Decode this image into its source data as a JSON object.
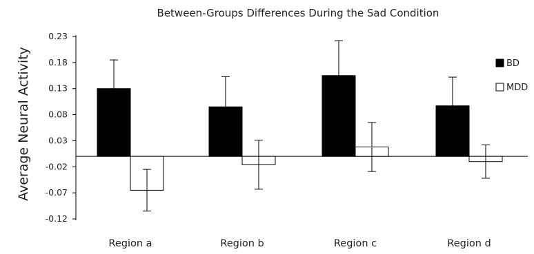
{
  "chart_data": {
    "type": "bar",
    "title": "Between-Groups Differences During the Sad Condition",
    "xlabel": "",
    "ylabel": "Average Neural Activity",
    "categories": [
      "Region a",
      "Region b",
      "Region c",
      "Region d"
    ],
    "yticks": [
      "0.23",
      "0.18",
      "0.13",
      "0.08",
      "0.03",
      "-0.02",
      "-0.07",
      "-0.12"
    ],
    "ylim": [
      -0.12,
      0.23
    ],
    "grid": false,
    "legend_position": "right",
    "series": [
      {
        "name": "BD",
        "color": "#000000",
        "fill": "solid",
        "values": [
          0.13,
          0.095,
          0.155,
          0.097
        ],
        "error": [
          0.055,
          0.058,
          0.067,
          0.055
        ]
      },
      {
        "name": "MDD",
        "color": "#ffffff",
        "fill": "outline",
        "values": [
          -0.065,
          -0.016,
          0.018,
          -0.01
        ],
        "error": [
          0.04,
          0.047,
          0.047,
          0.032
        ]
      }
    ]
  }
}
